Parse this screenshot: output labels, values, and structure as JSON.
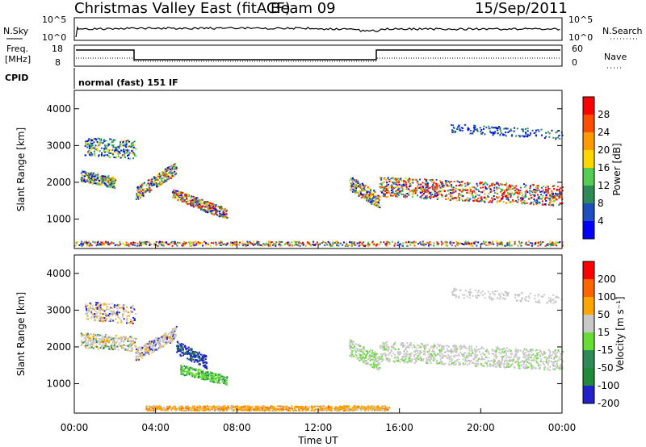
{
  "header": {
    "title": "Christmas Valley East (fitACF)",
    "beam": "Beam 09",
    "date": "15/Sep/2011"
  },
  "top_panels": {
    "nsky_label": "N.Sky",
    "nsky_ticks": [
      "10^5",
      "10^0"
    ],
    "nsearch_label": "N.Search",
    "nsearch_ticks": [
      "10^5",
      "10^0"
    ],
    "freq_label": "Freq.",
    "freq_unit": "[MHz]",
    "freq_ticks": [
      "18",
      "8"
    ],
    "nave_label": "Nave",
    "nave_ticks": [
      "60",
      "0"
    ],
    "cpid_label": "CPID",
    "cpid_text": "normal (fast) 151 IF"
  },
  "colors": {
    "power": [
      "#0000ff",
      "#1f4fbf",
      "#2e8b57",
      "#55cc55",
      "#ffd700",
      "#ff9900",
      "#ff4d00",
      "#ff0000"
    ],
    "velocity": [
      "#2222cc",
      "#1f8a3a",
      "#2e8b57",
      "#66dd33",
      "#c8c8c8",
      "#ffa500",
      "#ff6600",
      "#ff0000"
    ]
  },
  "chart_data": [
    {
      "type": "heatmap",
      "ylabel": "Slant Range [km]",
      "y_ticks": [
        1000,
        2000,
        3000,
        4000
      ],
      "ylim": [
        200,
        4500
      ],
      "x_ticks": [
        "00:00",
        "04:00",
        "08:00",
        "12:00",
        "16:00",
        "20:00",
        "00:00"
      ],
      "xlim_hours": [
        0,
        24
      ],
      "colorbar_label": "Power [dB]",
      "colorbar_ticks": [
        "28",
        "24",
        "20",
        "16",
        "12",
        "8",
        "4"
      ]
    },
    {
      "type": "heatmap",
      "ylabel": "Slant Range [km]",
      "y_ticks": [
        1000,
        2000,
        3000,
        4000
      ],
      "ylim": [
        200,
        4500
      ],
      "x_ticks": [
        "00:00",
        "04:00",
        "08:00",
        "12:00",
        "16:00",
        "20:00",
        "00:00"
      ],
      "xlim_hours": [
        0,
        24
      ],
      "xlabel": "Time UT",
      "colorbar_label": "Velocity [m s⁻¹]",
      "colorbar_ticks": [
        "200",
        "100",
        "50",
        "15",
        "-15",
        "-50",
        "-100",
        "-200"
      ]
    }
  ]
}
